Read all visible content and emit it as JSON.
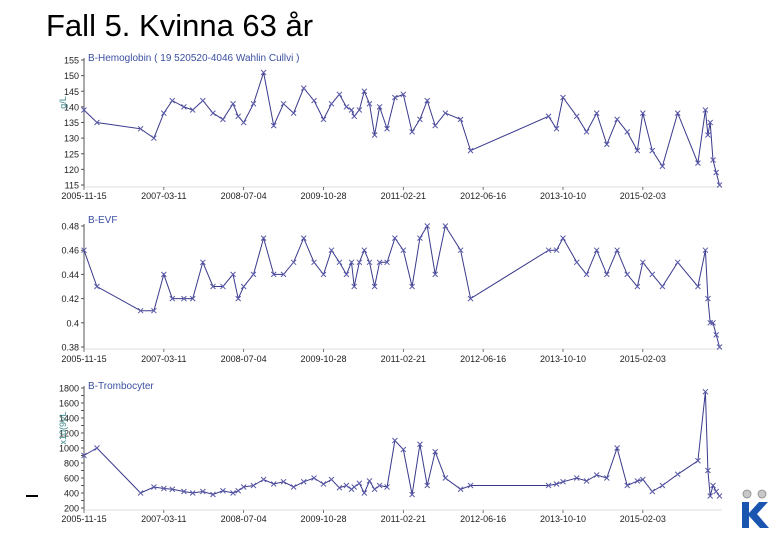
{
  "slide_title": "Fall 5. Kvinna 63 år",
  "colors": {
    "series": "#3a3a8c",
    "marker": "#5a5aa8",
    "panel_title": "#3b4fa0",
    "axis": "#555555",
    "unit": "#3a8a8a",
    "logo": "#1a56b0"
  },
  "logo_icon": "k-logo-icon",
  "chart_data": [
    {
      "type": "line",
      "title": "B-Hemoglobin ( 19 520520-4046 Wahlin Cullvi )",
      "ylabel": "g/L",
      "ylim": [
        115,
        155
      ],
      "yticks": [
        115,
        120,
        125,
        130,
        135,
        140,
        145,
        150,
        155
      ],
      "x_tick_labels": [
        "2005-11-15",
        "2007-03-11",
        "2008-07-04",
        "2009-10-28",
        "2011-02-21",
        "2012-06-16",
        "2013-10-10",
        "2015-02-03"
      ],
      "x_range": [
        "2005-11-15",
        "2016-05-25"
      ],
      "series": [
        {
          "dates": [
            "2005-11-15",
            "2006-02-01",
            "2006-10-22",
            "2007-01-10",
            "2007-03-11",
            "2007-05-01",
            "2007-07-10",
            "2007-09-01",
            "2007-11-01",
            "2008-01-01",
            "2008-03-01",
            "2008-05-01",
            "2008-06-01",
            "2008-07-04",
            "2008-09-01",
            "2008-11-01",
            "2009-01-01",
            "2009-03-01",
            "2009-05-01",
            "2009-07-01",
            "2009-09-01",
            "2009-10-28",
            "2009-12-15",
            "2010-02-01",
            "2010-03-15",
            "2010-04-15",
            "2010-05-01",
            "2010-06-01",
            "2010-07-01",
            "2010-08-01",
            "2010-09-01",
            "2010-10-01",
            "2010-11-15",
            "2011-01-01",
            "2011-02-21",
            "2011-04-15",
            "2011-06-01",
            "2011-07-15",
            "2011-09-01",
            "2011-11-01",
            "2012-02-01",
            "2012-04-01",
            "2013-07-15",
            "2013-09-01",
            "2013-10-10",
            "2014-01-01",
            "2014-03-01",
            "2014-05-01",
            "2014-07-01",
            "2014-09-01",
            "2014-11-01",
            "2015-01-01",
            "2015-02-03",
            "2015-04-01",
            "2015-06-01",
            "2015-09-01",
            "2016-01-01",
            "2016-02-15",
            "2016-03-01",
            "2016-03-15",
            "2016-04-01",
            "2016-04-20",
            "2016-05-10"
          ],
          "values": [
            139,
            135,
            133,
            130,
            138,
            142,
            140,
            139,
            142,
            138,
            136,
            141,
            137,
            135,
            141,
            151,
            134,
            141,
            138,
            146,
            142,
            136,
            141,
            144,
            140,
            139,
            137,
            139,
            145,
            141,
            131,
            140,
            133,
            143,
            144,
            132,
            136,
            142,
            134,
            138,
            136,
            126,
            137,
            133,
            143,
            137,
            132,
            138,
            128,
            136,
            132,
            126,
            138,
            126,
            121,
            138,
            122,
            139,
            131,
            135,
            123,
            119,
            115
          ]
        }
      ]
    },
    {
      "type": "line",
      "title": "B-EVF",
      "ylabel": "",
      "ylim": [
        0.38,
        0.48
      ],
      "yticks": [
        0.38,
        0.4,
        0.42,
        0.44,
        0.46,
        0.48
      ],
      "x_tick_labels": [
        "2005-11-15",
        "2007-03-11",
        "2008-07-04",
        "2009-10-28",
        "2011-02-21",
        "2012-06-16",
        "2013-10-10",
        "2015-02-03"
      ],
      "x_range": [
        "2005-11-15",
        "2016-05-25"
      ],
      "series": [
        {
          "dates": [
            "2005-11-15",
            "2006-02-01",
            "2006-10-22",
            "2007-01-10",
            "2007-03-11",
            "2007-05-01",
            "2007-07-10",
            "2007-09-01",
            "2007-11-01",
            "2008-01-01",
            "2008-03-01",
            "2008-05-01",
            "2008-06-01",
            "2008-07-04",
            "2008-09-01",
            "2008-11-01",
            "2009-01-01",
            "2009-03-01",
            "2009-05-01",
            "2009-07-01",
            "2009-09-01",
            "2009-10-28",
            "2009-12-15",
            "2010-02-01",
            "2010-03-15",
            "2010-04-15",
            "2010-05-01",
            "2010-06-01",
            "2010-07-01",
            "2010-08-01",
            "2010-09-01",
            "2010-10-01",
            "2010-11-15",
            "2011-01-01",
            "2011-02-21",
            "2011-04-15",
            "2011-06-01",
            "2011-07-15",
            "2011-09-01",
            "2011-11-01",
            "2012-02-01",
            "2012-04-01",
            "2013-07-15",
            "2013-09-01",
            "2013-10-10",
            "2014-01-01",
            "2014-03-01",
            "2014-05-01",
            "2014-07-01",
            "2014-09-01",
            "2014-11-01",
            "2015-01-01",
            "2015-02-03",
            "2015-04-01",
            "2015-06-01",
            "2015-09-01",
            "2016-01-01",
            "2016-02-15",
            "2016-03-01",
            "2016-03-15",
            "2016-04-01",
            "2016-04-20",
            "2016-05-10"
          ],
          "values": [
            0.46,
            0.43,
            0.41,
            0.41,
            0.44,
            0.42,
            0.42,
            0.42,
            0.45,
            0.43,
            0.43,
            0.44,
            0.42,
            0.43,
            0.44,
            0.47,
            0.44,
            0.44,
            0.45,
            0.47,
            0.45,
            0.44,
            0.46,
            0.45,
            0.44,
            0.45,
            0.43,
            0.45,
            0.46,
            0.45,
            0.43,
            0.45,
            0.45,
            0.47,
            0.46,
            0.43,
            0.47,
            0.48,
            0.44,
            0.48,
            0.46,
            0.42,
            0.46,
            0.46,
            0.47,
            0.45,
            0.44,
            0.46,
            0.44,
            0.46,
            0.44,
            0.43,
            0.45,
            0.44,
            0.43,
            0.45,
            0.43,
            0.46,
            0.42,
            0.4,
            0.4,
            0.39,
            0.38
          ]
        }
      ]
    },
    {
      "type": "line",
      "title": "B-Trombocyter",
      "ylabel": "x10(9)/L",
      "ylim": [
        200,
        1800
      ],
      "yticks": [
        200,
        300,
        400,
        500,
        600,
        700,
        800,
        900,
        1000,
        1100,
        1200,
        1300,
        1400,
        1500,
        1600,
        1700,
        1800
      ],
      "ytick_labels": [
        "200",
        "400",
        "600",
        "800",
        "1000",
        "1200",
        "1400",
        "1600",
        "1800"
      ],
      "x_tick_labels": [
        "2005-11-15",
        "2007-03-11",
        "2008-07-04",
        "2009-10-28",
        "2011-02-21",
        "2012-06-16",
        "2013-10-10",
        "2015-02-03"
      ],
      "x_range": [
        "2005-11-15",
        "2016-05-25"
      ],
      "series": [
        {
          "dates": [
            "2005-11-15",
            "2006-02-01",
            "2006-10-22",
            "2007-01-10",
            "2007-03-11",
            "2007-05-01",
            "2007-07-10",
            "2007-09-01",
            "2007-11-01",
            "2008-01-01",
            "2008-03-01",
            "2008-05-01",
            "2008-06-01",
            "2008-07-04",
            "2008-09-01",
            "2008-11-01",
            "2009-01-01",
            "2009-03-01",
            "2009-05-01",
            "2009-07-01",
            "2009-09-01",
            "2009-10-28",
            "2009-12-15",
            "2010-02-01",
            "2010-03-15",
            "2010-04-15",
            "2010-05-01",
            "2010-06-01",
            "2010-07-01",
            "2010-08-01",
            "2010-09-01",
            "2010-10-01",
            "2010-11-15",
            "2011-01-01",
            "2011-02-21",
            "2011-04-15",
            "2011-06-01",
            "2011-07-15",
            "2011-09-01",
            "2011-11-01",
            "2012-02-01",
            "2012-04-01",
            "2013-07-15",
            "2013-09-01",
            "2013-10-10",
            "2014-01-01",
            "2014-03-01",
            "2014-05-01",
            "2014-07-01",
            "2014-09-01",
            "2014-11-01",
            "2015-01-01",
            "2015-02-03",
            "2015-04-01",
            "2015-06-01",
            "2015-09-01",
            "2016-01-01",
            "2016-02-15",
            "2016-03-01",
            "2016-03-15",
            "2016-04-01",
            "2016-04-20",
            "2016-05-10"
          ],
          "values": [
            900,
            1000,
            400,
            480,
            460,
            450,
            420,
            400,
            420,
            380,
            430,
            400,
            430,
            480,
            500,
            580,
            520,
            550,
            480,
            550,
            600,
            520,
            580,
            470,
            500,
            450,
            480,
            530,
            400,
            560,
            450,
            500,
            480,
            1100,
            980,
            380,
            1050,
            500,
            950,
            600,
            450,
            500,
            500,
            520,
            550,
            600,
            560,
            640,
            600,
            1000,
            500,
            560,
            580,
            420,
            500,
            650,
            830,
            1750,
            700,
            360,
            500,
            420,
            360
          ]
        }
      ]
    }
  ]
}
